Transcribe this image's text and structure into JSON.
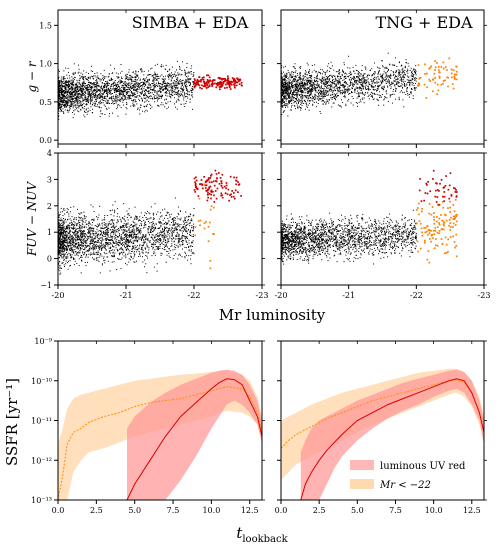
{
  "titles": {
    "left": "SIMBA + EDA",
    "right": "TNG + EDA"
  },
  "colors": {
    "bright": "#000000",
    "red_sequence": "#cc0000",
    "luminous": "#ff8000",
    "red_line": "#dd0000",
    "red_band": "#ff9999",
    "orange_line": "#ff8c00",
    "orange_band": "#ffd9b0"
  },
  "axis_labels": {
    "panel_y_top": "g − r",
    "panel_y_mid": "FUV − NUV",
    "top_x": "Mr luminosity",
    "bottom_y": "SSFR [yr⁻¹]",
    "bottom_x": "t",
    "bottom_x_sub": "lookback"
  },
  "ticks": {
    "gr_y": [
      "0.0",
      "0.5",
      "1.0",
      "1.5"
    ],
    "uv_y": [
      "−1",
      "0",
      "1",
      "2",
      "3",
      "4"
    ],
    "mag_x": [
      "-20",
      "-21",
      "-22",
      "-23"
    ],
    "ssfr_y": [
      "10⁻¹³",
      "10⁻¹²",
      "10⁻¹¹",
      "10⁻¹⁰",
      "10⁻⁹"
    ],
    "t_x": [
      "0.0",
      "2.5",
      "5.0",
      "7.5",
      "10.0",
      "12.5"
    ]
  },
  "legend": {
    "red": "luminous UV red",
    "orange": "Mr < −22"
  },
  "chart_data": [
    {
      "type": "scatter",
      "panel": "SIMBA g-r",
      "title": "SIMBA + EDA",
      "xlabel": "Mr luminosity",
      "ylabel": "g − r",
      "xlim": [
        -20,
        -23
      ],
      "ylim": [
        -0.05,
        1.7
      ],
      "series": [
        {
          "name": "",
          "x_range": [
            -20,
            -22
          ],
          "y_center": [
            0.6,
            0.72
          ],
          "y_spread": 0.12,
          "color": "#000000"
        },
        {
          "name": "",
          "x_range": [
            -22,
            -22.7
          ],
          "y_center": [
            0.75,
            0.77
          ],
          "y_spread": 0.04,
          "color": "#cc0000"
        }
      ]
    },
    {
      "type": "scatter",
      "panel": "TNG g-r",
      "title": "TNG + EDA",
      "xlim": [
        -20,
        -23
      ],
      "ylim": [
        -0.05,
        1.7
      ],
      "series": [
        {
          "name": "",
          "x_range": [
            -20,
            -22
          ],
          "y_center": [
            0.65,
            0.8
          ],
          "y_spread": 0.12,
          "color": "#000000"
        },
        {
          "name": "",
          "x_range": [
            -22,
            -22.6
          ],
          "y_center": [
            0.82,
            0.85
          ],
          "y_spread": 0.12,
          "color": "#ff8000"
        }
      ]
    },
    {
      "type": "scatter",
      "panel": "SIMBA FUV-NUV",
      "xlabel": "Mr luminosity",
      "ylabel": "FUV − NUV",
      "xlim": [
        -20,
        -23
      ],
      "ylim": [
        -1,
        4
      ],
      "series": [
        {
          "name": "",
          "x_range": [
            -20,
            -22
          ],
          "y_center": [
            0.7,
            1.0
          ],
          "y_spread": 0.45,
          "color": "#000000"
        },
        {
          "name": "luminous UV red",
          "x_range": [
            -22,
            -22.7
          ],
          "y_center": [
            2.7,
            2.8
          ],
          "y_spread": 0.25,
          "color": "#cc0000"
        },
        {
          "name": "",
          "x_range": [
            -22,
            -22.3
          ],
          "y_center": [
            1.2,
            1.0
          ],
          "y_spread": 0.6,
          "color": "#ff8000"
        }
      ]
    },
    {
      "type": "scatter",
      "panel": "TNG FUV-NUV",
      "xlim": [
        -20,
        -23
      ],
      "ylim": [
        -1,
        4
      ],
      "series": [
        {
          "name": "",
          "x_range": [
            -20,
            -22
          ],
          "y_center": [
            0.7,
            0.9
          ],
          "y_spread": 0.35,
          "color": "#000000"
        },
        {
          "name": "luminous UV red",
          "x_range": [
            -22,
            -22.6
          ],
          "y_center": [
            2.6,
            2.7
          ],
          "y_spread": 0.3,
          "color": "#cc0000"
        },
        {
          "name": "",
          "x_range": [
            -22,
            -22.6
          ],
          "y_center": [
            1.0,
            1.2
          ],
          "y_spread": 0.5,
          "color": "#ff8000"
        }
      ]
    },
    {
      "type": "line",
      "panel": "SIMBA SSFR history",
      "xlabel": "t_lookback",
      "ylabel": "SSFR [yr⁻¹]",
      "xlim": [
        0,
        13.3
      ],
      "ylim": [
        -13,
        -9
      ],
      "yscale": "log",
      "series": [
        {
          "name": "luminous UV red",
          "x": [
            4.5,
            5,
            6,
            7,
            8,
            9,
            10,
            10.5,
            11,
            11.5,
            12,
            12.5,
            13,
            13.3
          ],
          "y": [
            -13,
            -12.6,
            -12.0,
            -11.4,
            -10.9,
            -10.55,
            -10.2,
            -10.05,
            -9.95,
            -9.97,
            -10.1,
            -10.5,
            -10.9,
            -11.4
          ],
          "band_low": [
            -13,
            -13,
            -13,
            -13,
            -12.5,
            -11.9,
            -11.2,
            -10.9,
            -10.6,
            -10.5,
            -10.6,
            -10.8,
            -11.1,
            -11.6
          ],
          "band_high": [
            -11.2,
            -10.9,
            -10.55,
            -10.3,
            -10.1,
            -9.95,
            -9.8,
            -9.75,
            -9.72,
            -9.75,
            -9.85,
            -10.1,
            -10.5,
            -11.0
          ]
        },
        {
          "name": "Mr < −22",
          "x": [
            0,
            0.3,
            0.6,
            1,
            1.5,
            2,
            3,
            4,
            5,
            6,
            7,
            8,
            9,
            10,
            11,
            12,
            12.5,
            13,
            13.3
          ],
          "y": [
            -13,
            -12.4,
            -11.6,
            -11.3,
            -11.2,
            -11.05,
            -10.9,
            -10.8,
            -10.65,
            -10.55,
            -10.5,
            -10.45,
            -10.35,
            -10.25,
            -10.15,
            -10.2,
            -10.4,
            -10.8,
            -11.3
          ],
          "band_low": [
            -13,
            -13,
            -13,
            -12.3,
            -12.0,
            -11.8,
            -11.7,
            -11.55,
            -11.4,
            -11.3,
            -11.2,
            -11.1,
            -11.0,
            -10.9,
            -10.75,
            -10.8,
            -10.9,
            -11.1,
            -11.5
          ],
          "band_high": [
            -11.6,
            -11.2,
            -10.7,
            -10.45,
            -10.35,
            -10.3,
            -10.2,
            -10.1,
            -10.0,
            -9.95,
            -9.9,
            -9.85,
            -9.82,
            -9.78,
            -9.75,
            -9.85,
            -10.0,
            -10.4,
            -10.9
          ]
        }
      ]
    },
    {
      "type": "line",
      "panel": "TNG SSFR history",
      "xlim": [
        0,
        13.3
      ],
      "ylim": [
        -13,
        -9
      ],
      "yscale": "log",
      "series": [
        {
          "name": "luminous UV red",
          "x": [
            1.3,
            1.6,
            2,
            2.5,
            3,
            3.5,
            4,
            5,
            6,
            7,
            8,
            9,
            10,
            11,
            11.5,
            12,
            12.5,
            13,
            13.3
          ],
          "y": [
            -13,
            -12.6,
            -12.3,
            -12.0,
            -11.75,
            -11.55,
            -11.35,
            -11.0,
            -10.8,
            -10.6,
            -10.45,
            -10.3,
            -10.15,
            -10.0,
            -9.95,
            -10.0,
            -10.3,
            -10.8,
            -11.3
          ],
          "band_low": [
            -13,
            -13,
            -13,
            -13,
            -12.6,
            -12.2,
            -11.9,
            -11.5,
            -11.2,
            -10.95,
            -10.75,
            -10.6,
            -10.4,
            -10.25,
            -10.2,
            -10.3,
            -10.6,
            -11.0,
            -11.6
          ],
          "band_high": [
            -11.8,
            -11.5,
            -11.2,
            -11.0,
            -10.9,
            -10.8,
            -10.7,
            -10.5,
            -10.35,
            -10.2,
            -10.05,
            -9.95,
            -9.85,
            -9.75,
            -9.72,
            -9.78,
            -10.0,
            -10.5,
            -11.0
          ]
        },
        {
          "name": "Mr < −22",
          "x": [
            0,
            0.5,
            1,
            2,
            3,
            4,
            5,
            6,
            7,
            8,
            9,
            10,
            11,
            11.5,
            12,
            12.5,
            13,
            13.3
          ],
          "y": [
            -11.7,
            -11.5,
            -11.35,
            -11.15,
            -10.95,
            -10.8,
            -10.65,
            -10.5,
            -10.4,
            -10.3,
            -10.2,
            -10.1,
            -10.0,
            -9.98,
            -10.05,
            -10.3,
            -10.8,
            -11.3
          ],
          "band_low": [
            -12.5,
            -12.3,
            -12.1,
            -11.9,
            -11.7,
            -11.5,
            -11.3,
            -11.1,
            -10.95,
            -10.8,
            -10.65,
            -10.5,
            -10.35,
            -10.3,
            -10.4,
            -10.65,
            -11.1,
            -11.6
          ],
          "band_high": [
            -11.0,
            -10.9,
            -10.8,
            -10.6,
            -10.45,
            -10.3,
            -10.2,
            -10.1,
            -10.0,
            -9.9,
            -9.8,
            -9.75,
            -9.7,
            -9.7,
            -9.78,
            -10.0,
            -10.4,
            -10.9
          ]
        }
      ]
    }
  ]
}
